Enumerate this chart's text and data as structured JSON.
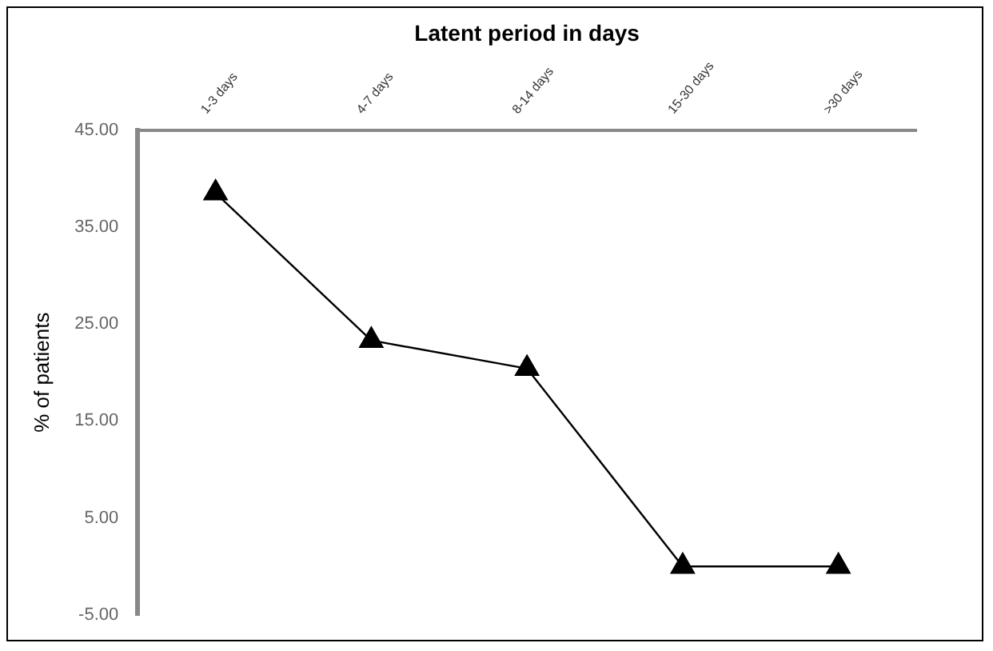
{
  "chart_data": {
    "type": "line",
    "xlabel": "Latent period in days",
    "ylabel": "% of patients",
    "categories": [
      "1-3 days",
      "4-7 days",
      "8-14 days",
      "15-30 days",
      ">30 days"
    ],
    "series": [
      {
        "color": "#000000",
        "values": [
          38.5,
          23.3,
          20.4,
          0,
          0
        ]
      }
    ],
    "ylim": [
      -5,
      45
    ],
    "yticks": [
      {
        "value": -5,
        "label": "-5.00"
      },
      {
        "value": 5,
        "label": "5.00"
      },
      {
        "value": 15,
        "label": "15.00"
      },
      {
        "value": 25,
        "label": "25.00"
      },
      {
        "value": 35,
        "label": "35.00"
      },
      {
        "value": 45,
        "label": "45.00"
      }
    ],
    "grid": false,
    "legend": false,
    "marker": "triangle",
    "line_style": "solid"
  }
}
